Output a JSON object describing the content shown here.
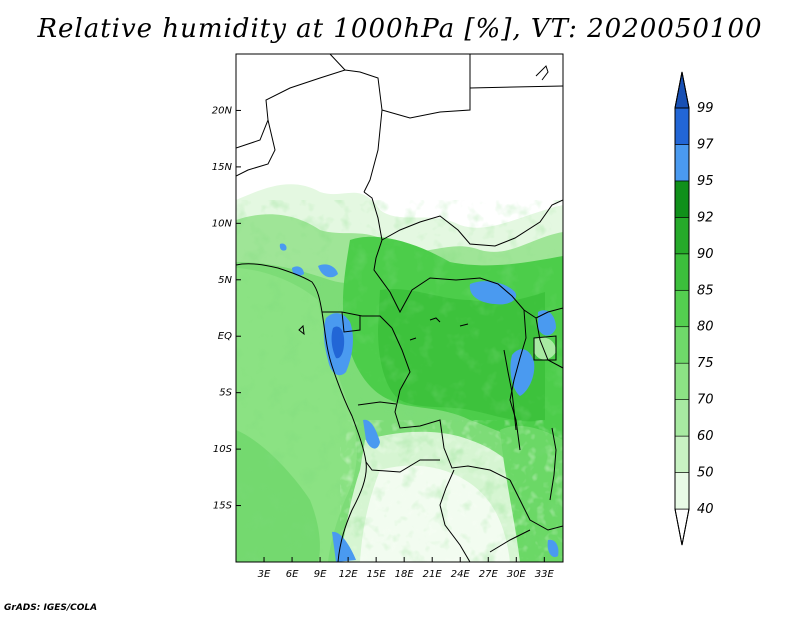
{
  "title": "Relative humidity at 1000hPa [%], VT: 2020050100",
  "credit": "GrADS: IGES/COLA",
  "map": {
    "lon_range": [
      0,
      35
    ],
    "lat_range": [
      -20,
      25
    ],
    "lat_ticks": [
      {
        "lat": 20,
        "label": "20N"
      },
      {
        "lat": 15,
        "label": "15N"
      },
      {
        "lat": 10,
        "label": "10N"
      },
      {
        "lat": 5,
        "label": "5N"
      },
      {
        "lat": 0,
        "label": "EQ"
      },
      {
        "lat": -5,
        "label": "5S"
      },
      {
        "lat": -10,
        "label": "10S"
      },
      {
        "lat": -15,
        "label": "15S"
      }
    ],
    "lon_ticks": [
      {
        "lon": 3,
        "label": "3E"
      },
      {
        "lon": 6,
        "label": "6E"
      },
      {
        "lon": 9,
        "label": "9E"
      },
      {
        "lon": 12,
        "label": "12E"
      },
      {
        "lon": 15,
        "label": "15E"
      },
      {
        "lon": 18,
        "label": "18E"
      },
      {
        "lon": 21,
        "label": "21E"
      },
      {
        "lon": 24,
        "label": "24E"
      },
      {
        "lon": 27,
        "label": "27E"
      },
      {
        "lon": 30,
        "label": "30E"
      },
      {
        "lon": 33,
        "label": "33E"
      }
    ]
  },
  "colorbar": {
    "labels": [
      "40",
      "50",
      "60",
      "70",
      "75",
      "80",
      "85",
      "90",
      "92",
      "95",
      "97",
      "99"
    ],
    "colors": [
      "#ffffff",
      "#e8fae6",
      "#c8f2c3",
      "#a8eaa2",
      "#8ce285",
      "#6fd96a",
      "#54cf50",
      "#3cbf3c",
      "#26aa2a",
      "#10901a",
      "#4a9af0",
      "#2266d6",
      "#1850b4"
    ]
  }
}
